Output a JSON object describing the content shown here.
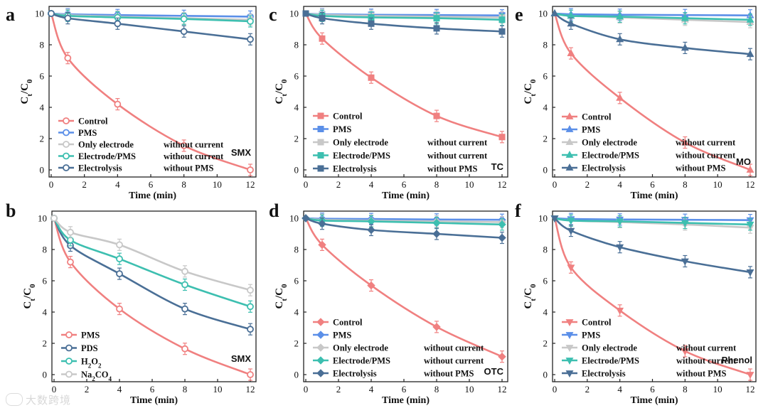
{
  "figure": {
    "watermark": "大数跨境",
    "xlabel": "Time (min)",
    "ylabel_main": "C",
    "ylabel_sub1": "t",
    "ylabel_sep": "/C",
    "ylabel_sub2": "0"
  },
  "chart_data": [
    {
      "panel": "a",
      "type": "line",
      "tag": "SMX",
      "xlim": [
        0,
        12
      ],
      "ylim": [
        0,
        10
      ],
      "xticks": [
        0,
        2,
        4,
        6,
        8,
        10,
        12
      ],
      "yticks": [
        0,
        2,
        4,
        6,
        8,
        10
      ],
      "xlabel": "Time (min)",
      "ylabel": "Ct/C0",
      "series": [
        {
          "name": "Control",
          "note": "",
          "x": [
            0,
            1,
            4,
            8,
            12
          ],
          "y": [
            10,
            7.15,
            4.2,
            1.55,
            0.0
          ],
          "color": "#f08080",
          "marker": "circle"
        },
        {
          "name": "PMS",
          "note": "",
          "x": [
            0,
            1,
            4,
            8,
            12
          ],
          "y": [
            10,
            9.95,
            9.9,
            9.85,
            9.8
          ],
          "color": "#5b8fe8",
          "marker": "circle"
        },
        {
          "name": "Only electrode",
          "note": "without current",
          "x": [
            0,
            1,
            4,
            8,
            12
          ],
          "y": [
            10,
            9.9,
            9.8,
            9.7,
            9.6
          ],
          "color": "#c8c8c8",
          "marker": "circle"
        },
        {
          "name": "Electrode/PMS",
          "note": "without current",
          "x": [
            0,
            1,
            4,
            8,
            12
          ],
          "y": [
            10,
            9.85,
            9.75,
            9.65,
            9.5
          ],
          "color": "#3dbfb0",
          "marker": "circle"
        },
        {
          "name": "Electrolysis",
          "note": "without PMS",
          "x": [
            0,
            1,
            4,
            8,
            12
          ],
          "y": [
            10,
            9.7,
            9.35,
            8.85,
            8.35
          ],
          "color": "#4a6f96",
          "marker": "circle"
        }
      ]
    },
    {
      "panel": "b",
      "type": "line",
      "tag": "SMX",
      "xlim": [
        0,
        12
      ],
      "ylim": [
        0,
        10
      ],
      "xticks": [
        0,
        2,
        4,
        6,
        8,
        10,
        12
      ],
      "yticks": [
        0,
        2,
        4,
        6,
        8,
        10
      ],
      "xlabel": "Time (min)",
      "ylabel": "Ct/C0",
      "series": [
        {
          "name": "PMS",
          "note": "",
          "x": [
            0,
            1,
            4,
            8,
            12
          ],
          "y": [
            10,
            7.2,
            4.2,
            1.65,
            0.0
          ],
          "color": "#f08080",
          "marker": "circle"
        },
        {
          "name": "PDS",
          "note": "",
          "x": [
            0,
            1,
            4,
            8,
            12
          ],
          "y": [
            10,
            8.25,
            6.45,
            4.2,
            2.9
          ],
          "color": "#4a6f96",
          "marker": "circle"
        },
        {
          "name": "H2O2",
          "note": "",
          "x": [
            0,
            1,
            4,
            8,
            12
          ],
          "y": [
            10,
            8.6,
            7.4,
            5.75,
            4.35
          ],
          "color": "#3dbfb0",
          "marker": "circle"
        },
        {
          "name": "Na2CO4",
          "note": "",
          "x": [
            0,
            1,
            4,
            8,
            12
          ],
          "y": [
            10,
            9.1,
            8.3,
            6.6,
            5.4
          ],
          "color": "#c8c8c8",
          "marker": "circle"
        }
      ]
    },
    {
      "panel": "c",
      "type": "line",
      "tag": "TC",
      "xlim": [
        0,
        12
      ],
      "ylim": [
        0,
        10
      ],
      "xticks": [
        0,
        2,
        4,
        6,
        8,
        10,
        12
      ],
      "yticks": [
        0,
        2,
        4,
        6,
        8,
        10
      ],
      "xlabel": "Time (min)",
      "ylabel": "Ct/C0",
      "series": [
        {
          "name": "Control",
          "note": "",
          "x": [
            0,
            1,
            4,
            8,
            12
          ],
          "y": [
            10,
            8.4,
            5.9,
            3.45,
            2.1
          ],
          "color": "#f08080",
          "marker": "square"
        },
        {
          "name": "PMS",
          "note": "",
          "x": [
            0,
            1,
            4,
            8,
            12
          ],
          "y": [
            10,
            9.95,
            9.92,
            9.9,
            9.88
          ],
          "color": "#5b8fe8",
          "marker": "square"
        },
        {
          "name": "Only electrode",
          "note": "without current",
          "x": [
            0,
            1,
            4,
            8,
            12
          ],
          "y": [
            10,
            9.92,
            9.85,
            9.8,
            9.75
          ],
          "color": "#c8c8c8",
          "marker": "square"
        },
        {
          "name": "Electrode/PMS",
          "note": "without current",
          "x": [
            0,
            1,
            4,
            8,
            12
          ],
          "y": [
            10,
            9.85,
            9.75,
            9.7,
            9.6
          ],
          "color": "#3dbfb0",
          "marker": "square"
        },
        {
          "name": "Electrolysis",
          "note": "without PMS",
          "x": [
            0,
            1,
            4,
            8,
            12
          ],
          "y": [
            10,
            9.7,
            9.35,
            9.05,
            8.85
          ],
          "color": "#4a6f96",
          "marker": "square"
        }
      ]
    },
    {
      "panel": "d",
      "type": "line",
      "tag": "OTC",
      "xlim": [
        0,
        12
      ],
      "ylim": [
        0,
        10
      ],
      "xticks": [
        0,
        2,
        4,
        6,
        8,
        10,
        12
      ],
      "yticks": [
        0,
        2,
        4,
        6,
        8,
        10
      ],
      "xlabel": "Time (min)",
      "ylabel": "Ct/C0",
      "series": [
        {
          "name": "Control",
          "note": "",
          "x": [
            0,
            1,
            4,
            8,
            12
          ],
          "y": [
            10,
            8.3,
            5.7,
            3.05,
            1.15
          ],
          "color": "#f08080",
          "marker": "diamond"
        },
        {
          "name": "PMS",
          "note": "",
          "x": [
            0,
            1,
            4,
            8,
            12
          ],
          "y": [
            10,
            9.97,
            9.95,
            9.92,
            9.9
          ],
          "color": "#5b8fe8",
          "marker": "diamond"
        },
        {
          "name": "Only electrode",
          "note": "without current",
          "x": [
            0,
            1,
            4,
            8,
            12
          ],
          "y": [
            10,
            9.9,
            9.85,
            9.8,
            9.75
          ],
          "color": "#c8c8c8",
          "marker": "diamond"
        },
        {
          "name": "Electrode/PMS",
          "note": "without current",
          "x": [
            0,
            1,
            4,
            8,
            12
          ],
          "y": [
            10,
            9.85,
            9.8,
            9.7,
            9.6
          ],
          "color": "#3dbfb0",
          "marker": "diamond"
        },
        {
          "name": "Electrolysis",
          "note": "without PMS",
          "x": [
            0,
            1,
            4,
            8,
            12
          ],
          "y": [
            10,
            9.65,
            9.25,
            9.0,
            8.75
          ],
          "color": "#4a6f96",
          "marker": "diamond"
        }
      ]
    },
    {
      "panel": "e",
      "type": "line",
      "tag": "MO",
      "xlim": [
        0,
        12
      ],
      "ylim": [
        0,
        10
      ],
      "xticks": [
        0,
        2,
        4,
        6,
        8,
        10,
        12
      ],
      "yticks": [
        0,
        2,
        4,
        6,
        8,
        10
      ],
      "xlabel": "Time (min)",
      "ylabel": "Ct/C0",
      "series": [
        {
          "name": "Control",
          "note": "",
          "x": [
            0,
            1,
            4,
            8,
            12
          ],
          "y": [
            10,
            7.45,
            4.6,
            1.75,
            0.0
          ],
          "color": "#f08080",
          "marker": "triangle-up"
        },
        {
          "name": "PMS",
          "note": "",
          "x": [
            0,
            1,
            4,
            8,
            12
          ],
          "y": [
            10,
            9.95,
            9.92,
            9.9,
            9.88
          ],
          "color": "#5b8fe8",
          "marker": "triangle-up"
        },
        {
          "name": "Only electrode",
          "note": "without current",
          "x": [
            0,
            1,
            4,
            8,
            12
          ],
          "y": [
            10,
            9.85,
            9.75,
            9.6,
            9.45
          ],
          "color": "#c8c8c8",
          "marker": "triangle-up"
        },
        {
          "name": "Electrode/PMS",
          "note": "without current",
          "x": [
            0,
            1,
            4,
            8,
            12
          ],
          "y": [
            10,
            9.85,
            9.8,
            9.7,
            9.6
          ],
          "color": "#3dbfb0",
          "marker": "triangle-up"
        },
        {
          "name": "Electrolysis",
          "note": "without PMS",
          "x": [
            0,
            1,
            4,
            8,
            12
          ],
          "y": [
            10,
            9.35,
            8.35,
            7.8,
            7.4
          ],
          "color": "#4a6f96",
          "marker": "triangle-up"
        }
      ]
    },
    {
      "panel": "f",
      "type": "line",
      "tag": "Phenol",
      "xlim": [
        0,
        12
      ],
      "ylim": [
        0,
        10
      ],
      "xticks": [
        0,
        2,
        4,
        6,
        8,
        10,
        12
      ],
      "yticks": [
        0,
        2,
        4,
        6,
        8,
        10
      ],
      "xlabel": "Time (min)",
      "ylabel": "Ct/C0",
      "series": [
        {
          "name": "Control",
          "note": "",
          "x": [
            0,
            1,
            4,
            8,
            12
          ],
          "y": [
            10,
            6.85,
            4.1,
            1.5,
            0.0
          ],
          "color": "#f08080",
          "marker": "triangle-down"
        },
        {
          "name": "PMS",
          "note": "",
          "x": [
            0,
            1,
            4,
            8,
            12
          ],
          "y": [
            10,
            9.95,
            9.92,
            9.9,
            9.88
          ],
          "color": "#5b8fe8",
          "marker": "triangle-down"
        },
        {
          "name": "Only electrode",
          "note": "without current",
          "x": [
            0,
            1,
            4,
            8,
            12
          ],
          "y": [
            10,
            9.85,
            9.75,
            9.6,
            9.4
          ],
          "color": "#c8c8c8",
          "marker": "triangle-down"
        },
        {
          "name": "Electrode/PMS",
          "note": "without current",
          "x": [
            0,
            1,
            4,
            8,
            12
          ],
          "y": [
            10,
            9.85,
            9.8,
            9.7,
            9.6
          ],
          "color": "#3dbfb0",
          "marker": "triangle-down"
        },
        {
          "name": "Electrolysis",
          "note": "without PMS",
          "x": [
            0,
            1,
            4,
            8,
            12
          ],
          "y": [
            10,
            9.2,
            8.15,
            7.25,
            6.55
          ],
          "color": "#4a6f96",
          "marker": "triangle-down"
        }
      ]
    }
  ]
}
